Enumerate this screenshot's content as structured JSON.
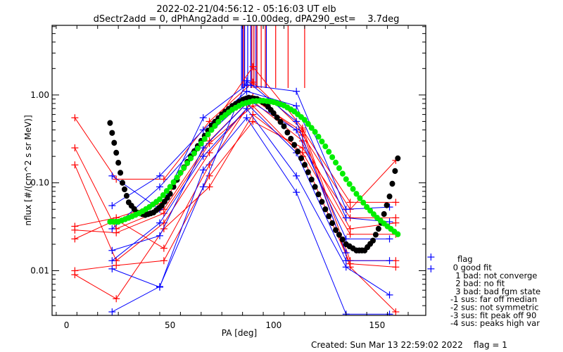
{
  "chart_data": {
    "type": "line",
    "title_line1": "2022-02-21/04:56:12 - 05:16:03 UT elb",
    "title_line2": "dSectr2add = 0, dPhAng2add = -10.00deg, dPA290_est=    3.7deg",
    "xlabel": "PA [deg]",
    "ylabel": "nflux [#/(cm^2 s sr MeV)]",
    "xlim": [
      -7,
      173.5
    ],
    "ylim": [
      0.0031,
      6.2
    ],
    "yscale": "log",
    "x_ticks": [
      0,
      50,
      100,
      150
    ],
    "x_tick_labels": [
      "0",
      "50",
      "100",
      "150"
    ],
    "y_ticks": [
      0.01,
      0.1,
      1.0
    ],
    "y_tick_labels": [
      "0.01",
      "0.10",
      "1.00"
    ],
    "grid": false,
    "colors": {
      "red": "#ff0000",
      "blue": "#0000ff",
      "black_fit": "#000000",
      "green_fit": "#00ee00"
    },
    "series": [
      {
        "name": "r1",
        "color": "red",
        "x": [
          4,
          24,
          47,
          69,
          90,
          114,
          137,
          159
        ],
        "y": [
          0.55,
          0.11,
          0.11,
          0.5,
          1.4,
          0.4,
          0.06,
          0.06
        ]
      },
      {
        "name": "r2",
        "color": "red",
        "x": [
          4,
          24,
          47,
          69,
          90,
          114,
          137,
          159
        ],
        "y": [
          0.25,
          0.03,
          0.05,
          0.3,
          0.95,
          0.35,
          0.05,
          0.18
        ]
      },
      {
        "name": "r3",
        "color": "red",
        "x": [
          4,
          24,
          47,
          69,
          90,
          114,
          137,
          159
        ],
        "y": [
          0.16,
          0.013,
          0.035,
          0.22,
          0.85,
          0.3,
          0.03,
          0.035
        ]
      },
      {
        "name": "r4",
        "color": "red",
        "x": [
          4,
          24,
          47,
          69,
          90,
          114,
          137,
          159
        ],
        "y": [
          0.032,
          0.04,
          0.06,
          0.4,
          2.1,
          0.42,
          0.013,
          0.013
        ]
      },
      {
        "name": "r5",
        "color": "red",
        "x": [
          4,
          24,
          47,
          69,
          90,
          114,
          137,
          159
        ],
        "y": [
          0.029,
          0.027,
          0.045,
          0.28,
          0.75,
          0.2,
          0.012,
          0.011
        ]
      },
      {
        "name": "r6",
        "color": "red",
        "x": [
          4,
          24,
          47,
          69,
          90,
          114,
          137,
          159
        ],
        "y": [
          0.023,
          0.038,
          0.018,
          0.16,
          0.9,
          0.38,
          0.011,
          0.0034
        ]
      },
      {
        "name": "r7",
        "color": "red",
        "x": [
          4,
          24,
          47,
          69,
          90,
          114,
          137,
          159
        ],
        "y": [
          0.01,
          0.0115,
          0.013,
          0.12,
          0.5,
          0.25,
          0.04,
          0.04
        ]
      },
      {
        "name": "r8",
        "color": "red",
        "x": [
          4,
          24,
          47,
          69,
          90,
          114,
          137,
          159
        ],
        "y": [
          0.009,
          0.0048,
          0.03,
          0.09,
          0.6,
          0.22,
          0.026,
          0.026
        ]
      },
      {
        "name": "b1",
        "color": "blue",
        "x": [
          22,
          45,
          66,
          87,
          111,
          135,
          156
        ],
        "y": [
          0.12,
          0.05,
          0.55,
          1.3,
          1.1,
          0.05,
          0.053
        ]
      },
      {
        "name": "b2",
        "color": "blue",
        "x": [
          22,
          45,
          66,
          87,
          111,
          135,
          156
        ],
        "y": [
          0.055,
          0.12,
          0.4,
          1.1,
          0.75,
          0.04,
          0.036
        ]
      },
      {
        "name": "b3",
        "color": "blue",
        "x": [
          22,
          45,
          66,
          87,
          111,
          135,
          156
        ],
        "y": [
          0.03,
          0.09,
          0.32,
          0.9,
          0.4,
          0.023,
          0.023
        ]
      },
      {
        "name": "b4",
        "color": "blue",
        "x": [
          22,
          45,
          66,
          87,
          111,
          135,
          156
        ],
        "y": [
          0.017,
          0.025,
          0.25,
          0.8,
          0.22,
          0.013,
          0.013
        ]
      },
      {
        "name": "b5",
        "color": "blue",
        "x": [
          22,
          45,
          66,
          87,
          111,
          135,
          156
        ],
        "y": [
          0.013,
          0.035,
          0.2,
          0.7,
          0.12,
          0.011,
          0.0053
        ]
      },
      {
        "name": "b6",
        "color": "blue",
        "x": [
          22,
          45,
          66,
          87,
          111,
          135,
          156
        ],
        "y": [
          0.0105,
          0.0065,
          0.14,
          0.55,
          0.078,
          0.0032,
          0.0032
        ]
      },
      {
        "name": "b7",
        "color": "blue",
        "x": [
          22,
          45,
          66,
          87,
          111,
          135
        ],
        "y": [
          0.0034,
          0.0066,
          0.09,
          1.45,
          0.5,
          0.016
        ]
      },
      {
        "name": "b-extra",
        "color": "blue",
        "x": [
          176,
          176
        ],
        "y": [
          0.0143,
          0.0105
        ],
        "markers_only": true
      }
    ],
    "peak_lines": {
      "red_pa": [
        85.5,
        89.5,
        90.5,
        92,
        94,
        96,
        101,
        107,
        115
      ],
      "blue_pa": [
        84.5,
        85,
        86,
        87.5,
        89,
        89.5,
        90.5,
        91.5,
        96.5
      ]
    },
    "fit_curves": [
      {
        "name": "black-fit",
        "color": "black_fit",
        "x": [
          21,
          24,
          27,
          30,
          34,
          38,
          42,
          46,
          50,
          55,
          60,
          65,
          70,
          75,
          80,
          85,
          88,
          92,
          96,
          100,
          105,
          110,
          115,
          120,
          125,
          130,
          135,
          140,
          144,
          148,
          152,
          156,
          160
        ],
        "y": [
          0.48,
          0.22,
          0.1,
          0.06,
          0.046,
          0.043,
          0.046,
          0.055,
          0.075,
          0.13,
          0.2,
          0.3,
          0.45,
          0.6,
          0.75,
          0.88,
          0.93,
          0.9,
          0.8,
          0.62,
          0.44,
          0.27,
          0.16,
          0.09,
          0.05,
          0.029,
          0.02,
          0.017,
          0.017,
          0.022,
          0.035,
          0.07,
          0.19
        ]
      },
      {
        "name": "green-fit",
        "color": "green_fit",
        "x": [
          21,
          25,
          30,
          35,
          40,
          45,
          50,
          55,
          60,
          65,
          70,
          75,
          80,
          85,
          90,
          95,
          100,
          105,
          110,
          115,
          120,
          125,
          130,
          135,
          140,
          145,
          150,
          155,
          160
        ],
        "y": [
          0.036,
          0.036,
          0.04,
          0.045,
          0.053,
          0.065,
          0.09,
          0.13,
          0.19,
          0.28,
          0.4,
          0.55,
          0.68,
          0.79,
          0.85,
          0.86,
          0.83,
          0.76,
          0.65,
          0.52,
          0.38,
          0.26,
          0.17,
          0.11,
          0.075,
          0.053,
          0.04,
          0.032,
          0.026
        ]
      }
    ],
    "legend": {
      "title": "flag",
      "placement": "right",
      "entries": [
        " 0 good fit",
        "  1 bad: not converge",
        "  2 bad: no fit",
        "  3 bad: bad fgm state",
        "-1 sus: far off median",
        "-2 sus: not symmetric",
        "-3 sus: fit peak off 90",
        "-4 sus: peaks high var"
      ]
    },
    "footer": "Created: Sun Mar 13 22:59:02 2022    flag = 1"
  }
}
